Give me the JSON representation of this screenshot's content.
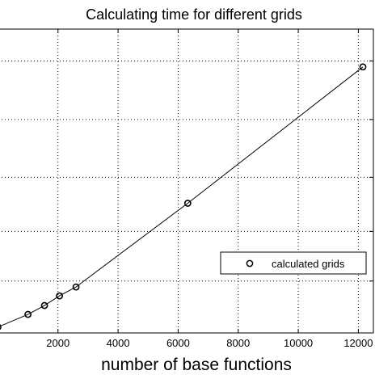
{
  "chart_data": {
    "type": "line",
    "title": "Calculating time for different grids",
    "xlabel": "number of base functions",
    "ylabel": "",
    "xlim": [
      -200,
      12500
    ],
    "ylim": [
      0,
      410
    ],
    "x_ticks": [
      2000,
      4000,
      6000,
      8000,
      10000,
      12000
    ],
    "x_tick_labels": [
      "2000",
      "4000",
      "6000",
      "8000",
      "10000",
      "12000"
    ],
    "y_ticks": [
      70,
      137,
      210,
      288,
      367
    ],
    "y_tick_labels": [
      "",
      "",
      "",
      "",
      ""
    ],
    "grid": true,
    "legend_position": "middle-right",
    "series": [
      {
        "name": "calculated grids",
        "marker": "circle",
        "line": true,
        "color": "#000000",
        "x": [
          0,
          1000,
          1550,
          2050,
          2600,
          6320,
          12150
        ],
        "y": [
          8,
          25,
          37,
          50,
          62,
          175,
          359
        ]
      }
    ]
  }
}
